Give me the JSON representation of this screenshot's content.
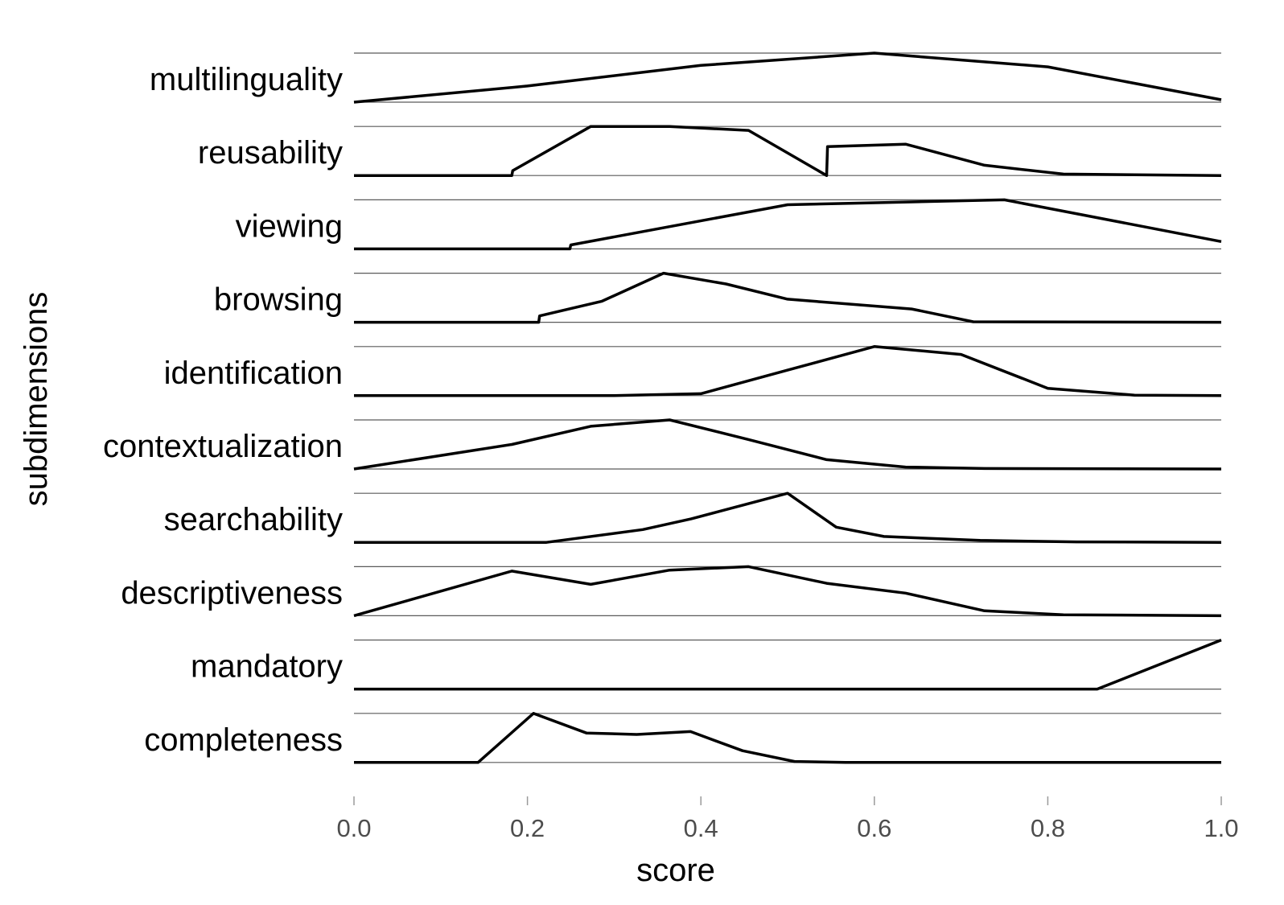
{
  "chart_data": {
    "type": "line",
    "xlabel": "score",
    "ylabel": "subdimensions",
    "xlim": [
      0,
      1
    ],
    "x_ticks": [
      "0.0",
      "0.2",
      "0.4",
      "0.6",
      "0.8",
      "1.0"
    ],
    "grid": true,
    "legend": "none",
    "line_color": "#000000",
    "series": [
      {
        "name": "multilinguality",
        "points": [
          [
            0,
            0
          ],
          [
            0.2,
            0.33
          ],
          [
            0.4,
            0.75
          ],
          [
            0.6,
            1
          ],
          [
            0.8,
            0.72
          ],
          [
            1,
            0.05
          ]
        ]
      },
      {
        "name": "reusability",
        "points": [
          [
            0,
            0
          ],
          [
            0.182,
            0
          ],
          [
            0.183,
            0.1
          ],
          [
            0.273,
            1
          ],
          [
            0.364,
            1
          ],
          [
            0.455,
            0.92
          ],
          [
            0.545,
            0
          ],
          [
            0.546,
            0.59
          ],
          [
            0.636,
            0.64
          ],
          [
            0.727,
            0.21
          ],
          [
            0.818,
            0.03
          ],
          [
            1,
            0
          ]
        ]
      },
      {
        "name": "viewing",
        "points": [
          [
            0,
            0
          ],
          [
            0.249,
            0
          ],
          [
            0.25,
            0.08
          ],
          [
            0.5,
            0.9
          ],
          [
            0.75,
            1
          ],
          [
            1,
            0.15
          ]
        ]
      },
      {
        "name": "browsing",
        "points": [
          [
            0,
            0
          ],
          [
            0.213,
            0
          ],
          [
            0.214,
            0.13
          ],
          [
            0.286,
            0.43
          ],
          [
            0.357,
            1
          ],
          [
            0.429,
            0.78
          ],
          [
            0.5,
            0.47
          ],
          [
            0.643,
            0.27
          ],
          [
            0.714,
            0.01
          ],
          [
            1,
            0
          ]
        ]
      },
      {
        "name": "identification",
        "points": [
          [
            0,
            0
          ],
          [
            0.3,
            0
          ],
          [
            0.4,
            0.04
          ],
          [
            0.5,
            0.52
          ],
          [
            0.6,
            1
          ],
          [
            0.7,
            0.84
          ],
          [
            0.8,
            0.15
          ],
          [
            0.9,
            0.01
          ],
          [
            1,
            0
          ]
        ]
      },
      {
        "name": "contextualization",
        "points": [
          [
            0,
            0
          ],
          [
            0.182,
            0.5
          ],
          [
            0.273,
            0.87
          ],
          [
            0.364,
            1
          ],
          [
            0.455,
            0.6
          ],
          [
            0.545,
            0.19
          ],
          [
            0.636,
            0.04
          ],
          [
            0.727,
            0.01
          ],
          [
            1,
            0
          ]
        ]
      },
      {
        "name": "searchability",
        "points": [
          [
            0,
            0
          ],
          [
            0.222,
            0
          ],
          [
            0.333,
            0.26
          ],
          [
            0.389,
            0.48
          ],
          [
            0.5,
            1
          ],
          [
            0.556,
            0.31
          ],
          [
            0.611,
            0.12
          ],
          [
            0.722,
            0.04
          ],
          [
            0.833,
            0.01
          ],
          [
            1,
            0
          ]
        ]
      },
      {
        "name": "descriptiveness",
        "points": [
          [
            0,
            0
          ],
          [
            0.182,
            0.91
          ],
          [
            0.273,
            0.64
          ],
          [
            0.364,
            0.93
          ],
          [
            0.455,
            1
          ],
          [
            0.545,
            0.66
          ],
          [
            0.636,
            0.46
          ],
          [
            0.727,
            0.1
          ],
          [
            0.818,
            0.02
          ],
          [
            1,
            0
          ]
        ]
      },
      {
        "name": "mandatory",
        "points": [
          [
            0,
            0
          ],
          [
            0.857,
            0
          ],
          [
            1,
            1
          ]
        ]
      },
      {
        "name": "completeness",
        "points": [
          [
            0,
            0
          ],
          [
            0.143,
            0
          ],
          [
            0.207,
            1
          ],
          [
            0.268,
            0.6
          ],
          [
            0.326,
            0.57
          ],
          [
            0.388,
            0.63
          ],
          [
            0.448,
            0.24
          ],
          [
            0.508,
            0.02
          ],
          [
            0.567,
            0
          ],
          [
            1,
            0
          ]
        ]
      }
    ]
  }
}
